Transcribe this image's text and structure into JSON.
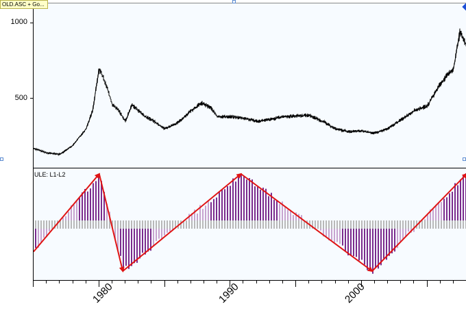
{
  "window": {
    "title_tag": "OLD.ASC + Go..."
  },
  "price_pane": {
    "y_ticks": [
      "1000",
      "500"
    ],
    "series_color": "#000000"
  },
  "oscillator_pane": {
    "label": "ULE: L1-L2",
    "bar_color_dark": "#7a2a8c",
    "bar_color_light": "#c7a3cf",
    "band_color": "#b8b8b8",
    "arrow_color": "#e01414"
  },
  "x_axis": {
    "labels": [
      "1980",
      "1990",
      "2000"
    ]
  },
  "chart_data": {
    "type": "line",
    "title": "",
    "xlabel": "",
    "ylabel": "",
    "x_range": [
      1975,
      2008
    ],
    "ylim": [
      0,
      1100
    ],
    "y_ticks": [
      500,
      1000
    ],
    "x_ticks": [
      1980,
      1990,
      2000
    ],
    "series": [
      {
        "x": [
          1975,
          1976,
          1977,
          1978,
          1979,
          1979.5,
          1980,
          1980.5,
          1981,
          1981.5,
          1982,
          1982.5,
          1983,
          1983.5,
          1984,
          1985,
          1986,
          1987,
          1987.8,
          1988.5,
          1989,
          1990,
          1991,
          1992,
          1993,
          1994,
          1995,
          1996,
          1997,
          1998,
          1999,
          2000,
          2001,
          2002,
          2003,
          2004,
          2005,
          2006,
          2007,
          2007.5,
          2008
        ],
        "values": [
          170,
          140,
          130,
          190,
          300,
          420,
          700,
          600,
          460,
          420,
          350,
          460,
          420,
          380,
          360,
          300,
          340,
          420,
          470,
          440,
          380,
          380,
          370,
          350,
          360,
          380,
          385,
          390,
          350,
          300,
          280,
          285,
          270,
          300,
          360,
          420,
          450,
          600,
          700,
          950,
          850
        ]
      }
    ],
    "oscillator_trend_arrows": [
      {
        "from": 1975,
        "to": 1980
      },
      {
        "from": 1980,
        "to": 1981.8
      },
      {
        "from": 1981.8,
        "to": 1990.8
      },
      {
        "from": 1990.8,
        "to": 2000.8
      },
      {
        "from": 2000.8,
        "to": 2008
      }
    ]
  }
}
